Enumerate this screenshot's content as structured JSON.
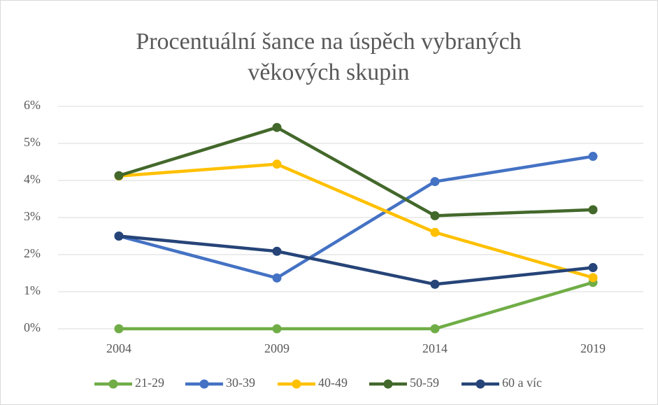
{
  "chart_data": {
    "type": "line",
    "title": "Procentuální šance na úspěch vybraných věkových skupin",
    "categories": [
      "2004",
      "2009",
      "2014",
      "2019"
    ],
    "series": [
      {
        "name": "21-29",
        "color": "#70ad47",
        "values": [
          0,
          0,
          0,
          1.25
        ]
      },
      {
        "name": "30-39",
        "color": "#4472c4",
        "values": [
          2.5,
          1.37,
          3.97,
          4.65
        ]
      },
      {
        "name": "40-49",
        "color": "#ffc000",
        "values": [
          4.12,
          4.44,
          2.6,
          1.38
        ]
      },
      {
        "name": "50-59",
        "color": "#43682b",
        "values": [
          4.13,
          5.43,
          3.05,
          3.21
        ]
      },
      {
        "name": "60 a víc",
        "color": "#264478",
        "values": [
          2.5,
          2.09,
          1.2,
          1.65
        ]
      }
    ],
    "ylim": [
      0,
      6
    ],
    "yticks": [
      {
        "value": 0,
        "label": "0%"
      },
      {
        "value": 1,
        "label": "1%"
      },
      {
        "value": 2,
        "label": "2%"
      },
      {
        "value": 3,
        "label": "3%"
      },
      {
        "value": 4,
        "label": "4%"
      },
      {
        "value": 5,
        "label": "5%"
      },
      {
        "value": 6,
        "label": "6%"
      }
    ],
    "grid": true
  }
}
